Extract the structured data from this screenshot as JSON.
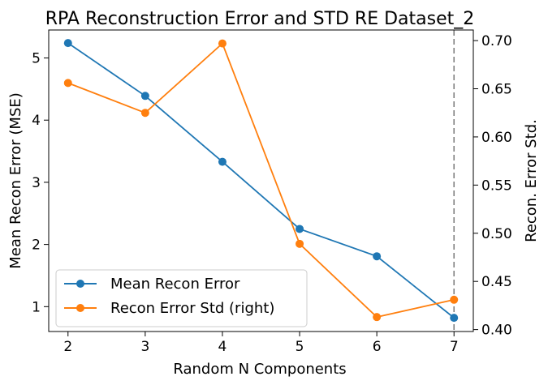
{
  "chart_data": {
    "type": "line",
    "title": "RPA Reconstruction Error and STD RE Dataset_2",
    "xlabel": "Random N Components",
    "ylabel": "Mean Recon Error (MSE)",
    "ylabel_right": "Recon. Error Std.",
    "x": [
      2,
      3,
      4,
      5,
      6,
      7
    ],
    "xlim": [
      1.75,
      7.25
    ],
    "ylim": [
      0.6,
      5.45
    ],
    "ylim_right": [
      0.398,
      0.711
    ],
    "x_ticks": [
      "2",
      "3",
      "4",
      "5",
      "6",
      "7"
    ],
    "y_ticks": [
      1,
      2,
      3,
      4,
      5
    ],
    "y_tick_labels": [
      "1",
      "2",
      "3",
      "4",
      "5"
    ],
    "y_ticks_right": [
      0.4,
      0.45,
      0.5,
      0.55,
      0.6,
      0.65,
      0.7
    ],
    "y_tick_labels_right": [
      "0.40",
      "0.45",
      "0.50",
      "0.55",
      "0.60",
      "0.65",
      "0.70"
    ],
    "series": [
      {
        "name": "Mean Recon Error",
        "axis": "left",
        "color": "#1f77b4",
        "values": [
          5.24,
          4.39,
          3.33,
          2.25,
          1.81,
          0.82
        ]
      },
      {
        "name": "Recon Error Std (right)",
        "axis": "right",
        "color": "#ff7f0e",
        "values": [
          0.656,
          0.625,
          0.697,
          0.489,
          0.413,
          0.431
        ]
      }
    ],
    "vline": {
      "x": 7,
      "color": "#808080",
      "style": "dashed"
    },
    "grid": false,
    "legend_position": "lower-left"
  }
}
